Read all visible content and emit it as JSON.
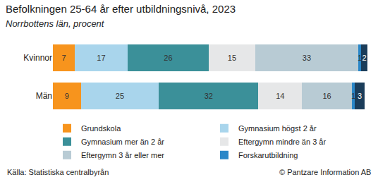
{
  "chart_data": {
    "type": "bar",
    "title": "Befolkningen 25-64 år efter utbildningsnivå, 2023",
    "subtitle": "Norrbottens län, procent",
    "orientation": "horizontal",
    "stacked": true,
    "data_labels": true,
    "tick_labels": "y",
    "grid": false,
    "legend": "bottom",
    "categories": [
      "Kvinnor",
      "Män"
    ],
    "xlim": [
      0,
      101
    ],
    "series": [
      {
        "name": "Grundskola",
        "color": "#f7941d",
        "values": [
          7,
          9
        ]
      },
      {
        "name": "Gymnasium högst 2 år",
        "color": "#a9d5ec",
        "values": [
          17,
          25
        ]
      },
      {
        "name": "Gymnasium mer än 2 år",
        "color": "#3b9099",
        "values": [
          26,
          32
        ]
      },
      {
        "name": "Eftergymn mindre än 3 år",
        "color": "#e6e7e8",
        "values": [
          15,
          14
        ]
      },
      {
        "name": "Eftergymn 3 år eller mer",
        "color": "#b8cbd4",
        "values": [
          33,
          16
        ]
      },
      {
        "name": "Forskarutbildning",
        "color": "#2a87c8",
        "values": [
          1,
          1
        ]
      },
      {
        "color": "#1b3d5a",
        "values": [
          2,
          3
        ]
      }
    ],
    "annotations": [
      "Källa: Statistiska centralbyrån",
      "© Pantzare Information AB"
    ]
  }
}
